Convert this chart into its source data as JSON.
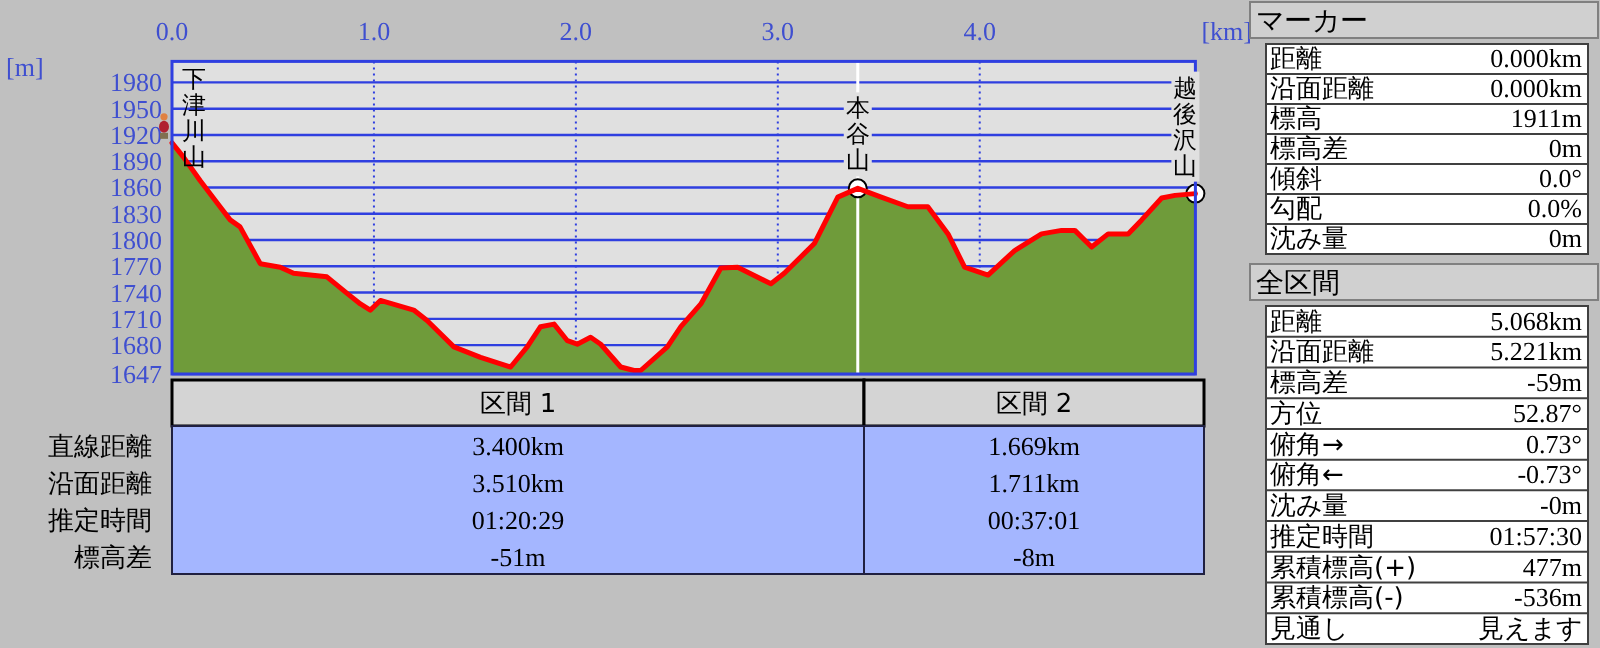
{
  "chart_data": [
    {
      "type": "area",
      "xlabel": "[km]",
      "ylabel": "[m]",
      "xlim": [
        0,
        5.068
      ],
      "ylim": [
        1647,
        2004
      ],
      "xticks": [
        {
          "value": 0,
          "label": "0.0"
        },
        {
          "value": 1,
          "label": "1.0"
        },
        {
          "value": 2,
          "label": "2.0"
        },
        {
          "value": 3,
          "label": "3.0"
        },
        {
          "value": 4,
          "label": "4.0"
        }
      ],
      "yticks": [
        1647,
        1680,
        1710,
        1740,
        1770,
        1800,
        1830,
        1860,
        1890,
        1920,
        1950,
        1980
      ],
      "grid": true,
      "x": [
        0,
        0.056,
        0.139,
        0.238,
        0.288,
        0.337,
        0.437,
        0.536,
        0.602,
        0.767,
        0.867,
        0.933,
        0.982,
        1.032,
        1.197,
        1.263,
        1.396,
        1.528,
        1.677,
        1.759,
        1.825,
        1.892,
        1.958,
        2.007,
        2.073,
        2.123,
        2.222,
        2.288,
        2.321,
        2.453,
        2.52,
        2.619,
        2.718,
        2.801,
        2.966,
        3.032,
        3.181,
        3.297,
        3.396,
        3.512,
        3.644,
        3.743,
        3.843,
        3.925,
        4.041,
        4.173,
        4.306,
        4.405,
        4.471,
        4.554,
        4.636,
        4.735,
        4.802,
        4.901,
        4.967,
        5.068
      ],
      "series": [
        {
          "type": "area",
          "color": "#6f9b3a",
          "values": [
            1911,
            1895,
            1868,
            1838,
            1823,
            1815,
            1773,
            1769,
            1762,
            1758,
            1739,
            1727,
            1720,
            1731,
            1720,
            1708,
            1678,
            1666,
            1655,
            1678,
            1701,
            1704,
            1685,
            1681,
            1689,
            1681,
            1655,
            1651,
            1651,
            1678,
            1701,
            1727,
            1768,
            1769,
            1750,
            1762,
            1796,
            1849,
            1859,
            1849,
            1838,
            1838,
            1807,
            1769,
            1760,
            1788,
            1807,
            1811,
            1811,
            1792,
            1807,
            1807,
            1823,
            1848,
            1851,
            1853
          ]
        },
        {
          "type": "line",
          "color": "#ff0000",
          "values": [
            1911,
            1895,
            1868,
            1838,
            1823,
            1815,
            1773,
            1769,
            1762,
            1758,
            1739,
            1727,
            1720,
            1731,
            1720,
            1708,
            1678,
            1666,
            1655,
            1678,
            1701,
            1704,
            1685,
            1681,
            1689,
            1681,
            1655,
            1651,
            1651,
            1678,
            1701,
            1727,
            1768,
            1769,
            1750,
            1762,
            1796,
            1849,
            1859,
            1849,
            1838,
            1838,
            1807,
            1769,
            1760,
            1788,
            1807,
            1811,
            1811,
            1792,
            1807,
            1807,
            1823,
            1848,
            1851,
            1853
          ]
        },
        {
          "type": "scatter",
          "color": "#ffffff",
          "marker": "circle",
          "x": [
            3.396,
            5.068
          ],
          "values": [
            1859,
            1853
          ]
        }
      ],
      "ref_lines": [
        {
          "axis": "x",
          "value": 3.396,
          "color": "#ffffff"
        }
      ],
      "annotations": [
        {
          "text": "下津川山",
          "x": 0,
          "y": 1911
        },
        {
          "text": "本谷山",
          "x": 3.396,
          "y": 1859
        },
        {
          "text": "越後沢山",
          "x": 5.068,
          "y": 1853
        }
      ]
    },
    {
      "type": "other",
      "categories": [
        "区間 1",
        "区間 2"
      ],
      "y_categories": [
        "直線距離",
        "沿面距離",
        "推定時間",
        "標高差"
      ],
      "cell_labels": [
        [
          "3.400km",
          "1.669km"
        ],
        [
          "3.510km",
          "1.711km"
        ],
        [
          "01:20:29",
          "00:37:01"
        ],
        [
          "-51m",
          "-8m"
        ]
      ]
    },
    {
      "type": "other",
      "title": "マーカー",
      "y_categories": [
        "距離",
        "沿面距離",
        "標高",
        "標高差",
        "傾斜",
        "勾配",
        "沈み量"
      ],
      "cell_labels": [
        [
          "0.000km"
        ],
        [
          "0.000km"
        ],
        [
          "1911m"
        ],
        [
          "0m"
        ],
        [
          "0.0°"
        ],
        [
          "0.0%"
        ],
        [
          "0m"
        ]
      ]
    },
    {
      "type": "other",
      "title": "全区間",
      "y_categories": [
        "距離",
        "沿面距離",
        "標高差",
        "方位",
        "俯角→",
        "俯角←",
        "沈み量",
        "推定時間",
        "累積標高(+)",
        "累積標高(-)",
        "見通し"
      ],
      "cell_labels": [
        [
          "5.068km"
        ],
        [
          "5.221km"
        ],
        [
          "-59m"
        ],
        [
          "52.87°"
        ],
        [
          "0.73°"
        ],
        [
          "-0.73°"
        ],
        [
          "-0m"
        ],
        [
          "01:57:30"
        ],
        [
          "477m"
        ],
        [
          "-536m"
        ],
        [
          "見えます"
        ]
      ]
    }
  ]
}
